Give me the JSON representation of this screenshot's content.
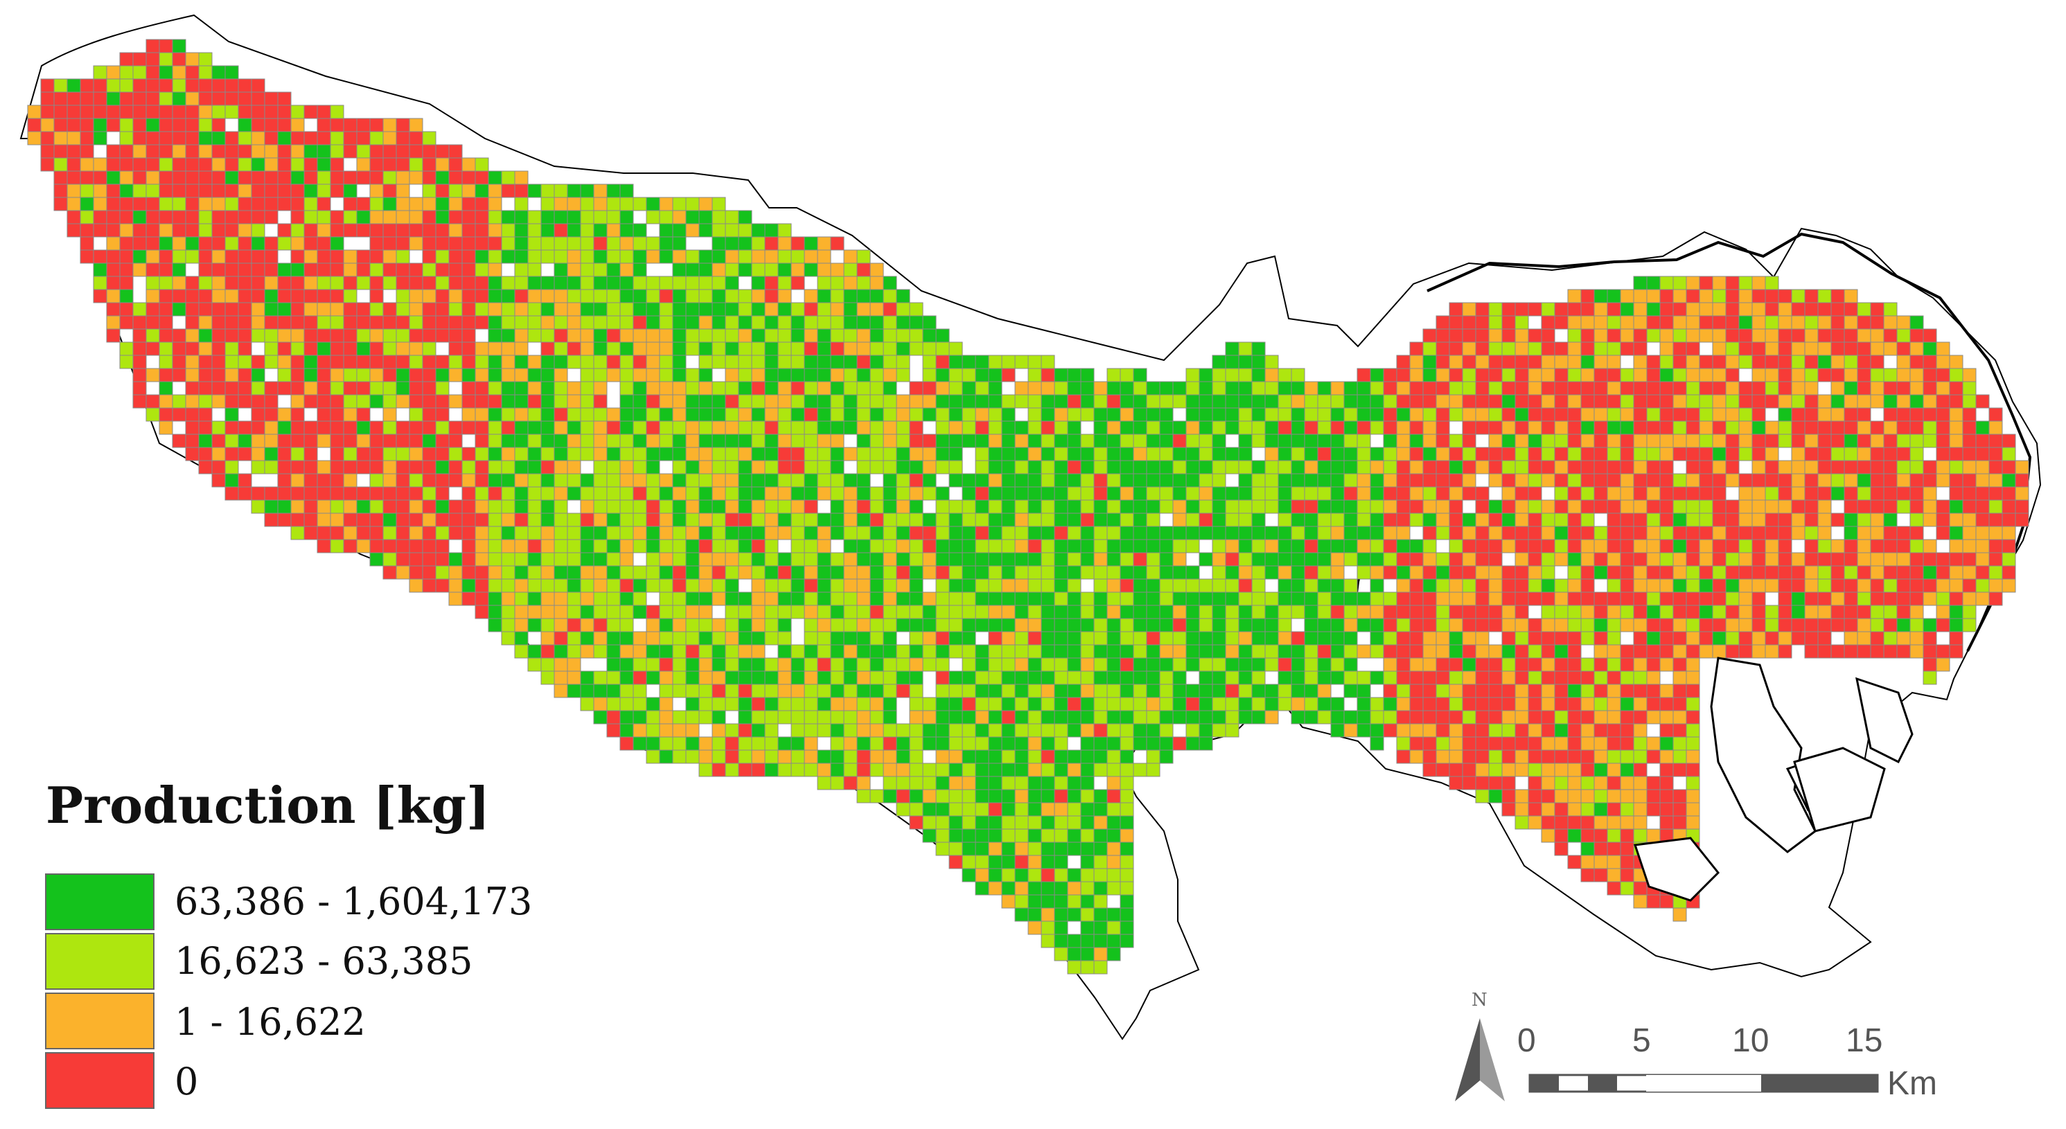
{
  "legend": {
    "title": "Production [kg]",
    "classes": [
      {
        "label": "63,386 - 1,604,173",
        "color": "#14c21c"
      },
      {
        "label": "16,623 - 63,385",
        "color": "#aee60f"
      },
      {
        "label": "1 - 16,622",
        "color": "#fbb22c"
      },
      {
        "label": "0",
        "color": "#f73b37"
      }
    ]
  },
  "scale_bar": {
    "ticks": [
      "0",
      "5",
      "10",
      "15"
    ],
    "unit": "Km"
  },
  "north_arrow": {
    "letter": "N",
    "icon": "north-arrow-icon"
  },
  "colors": {
    "grid_line": "#8a8a8a",
    "boundary": "#000000",
    "district_line": "#6b6b6b"
  }
}
